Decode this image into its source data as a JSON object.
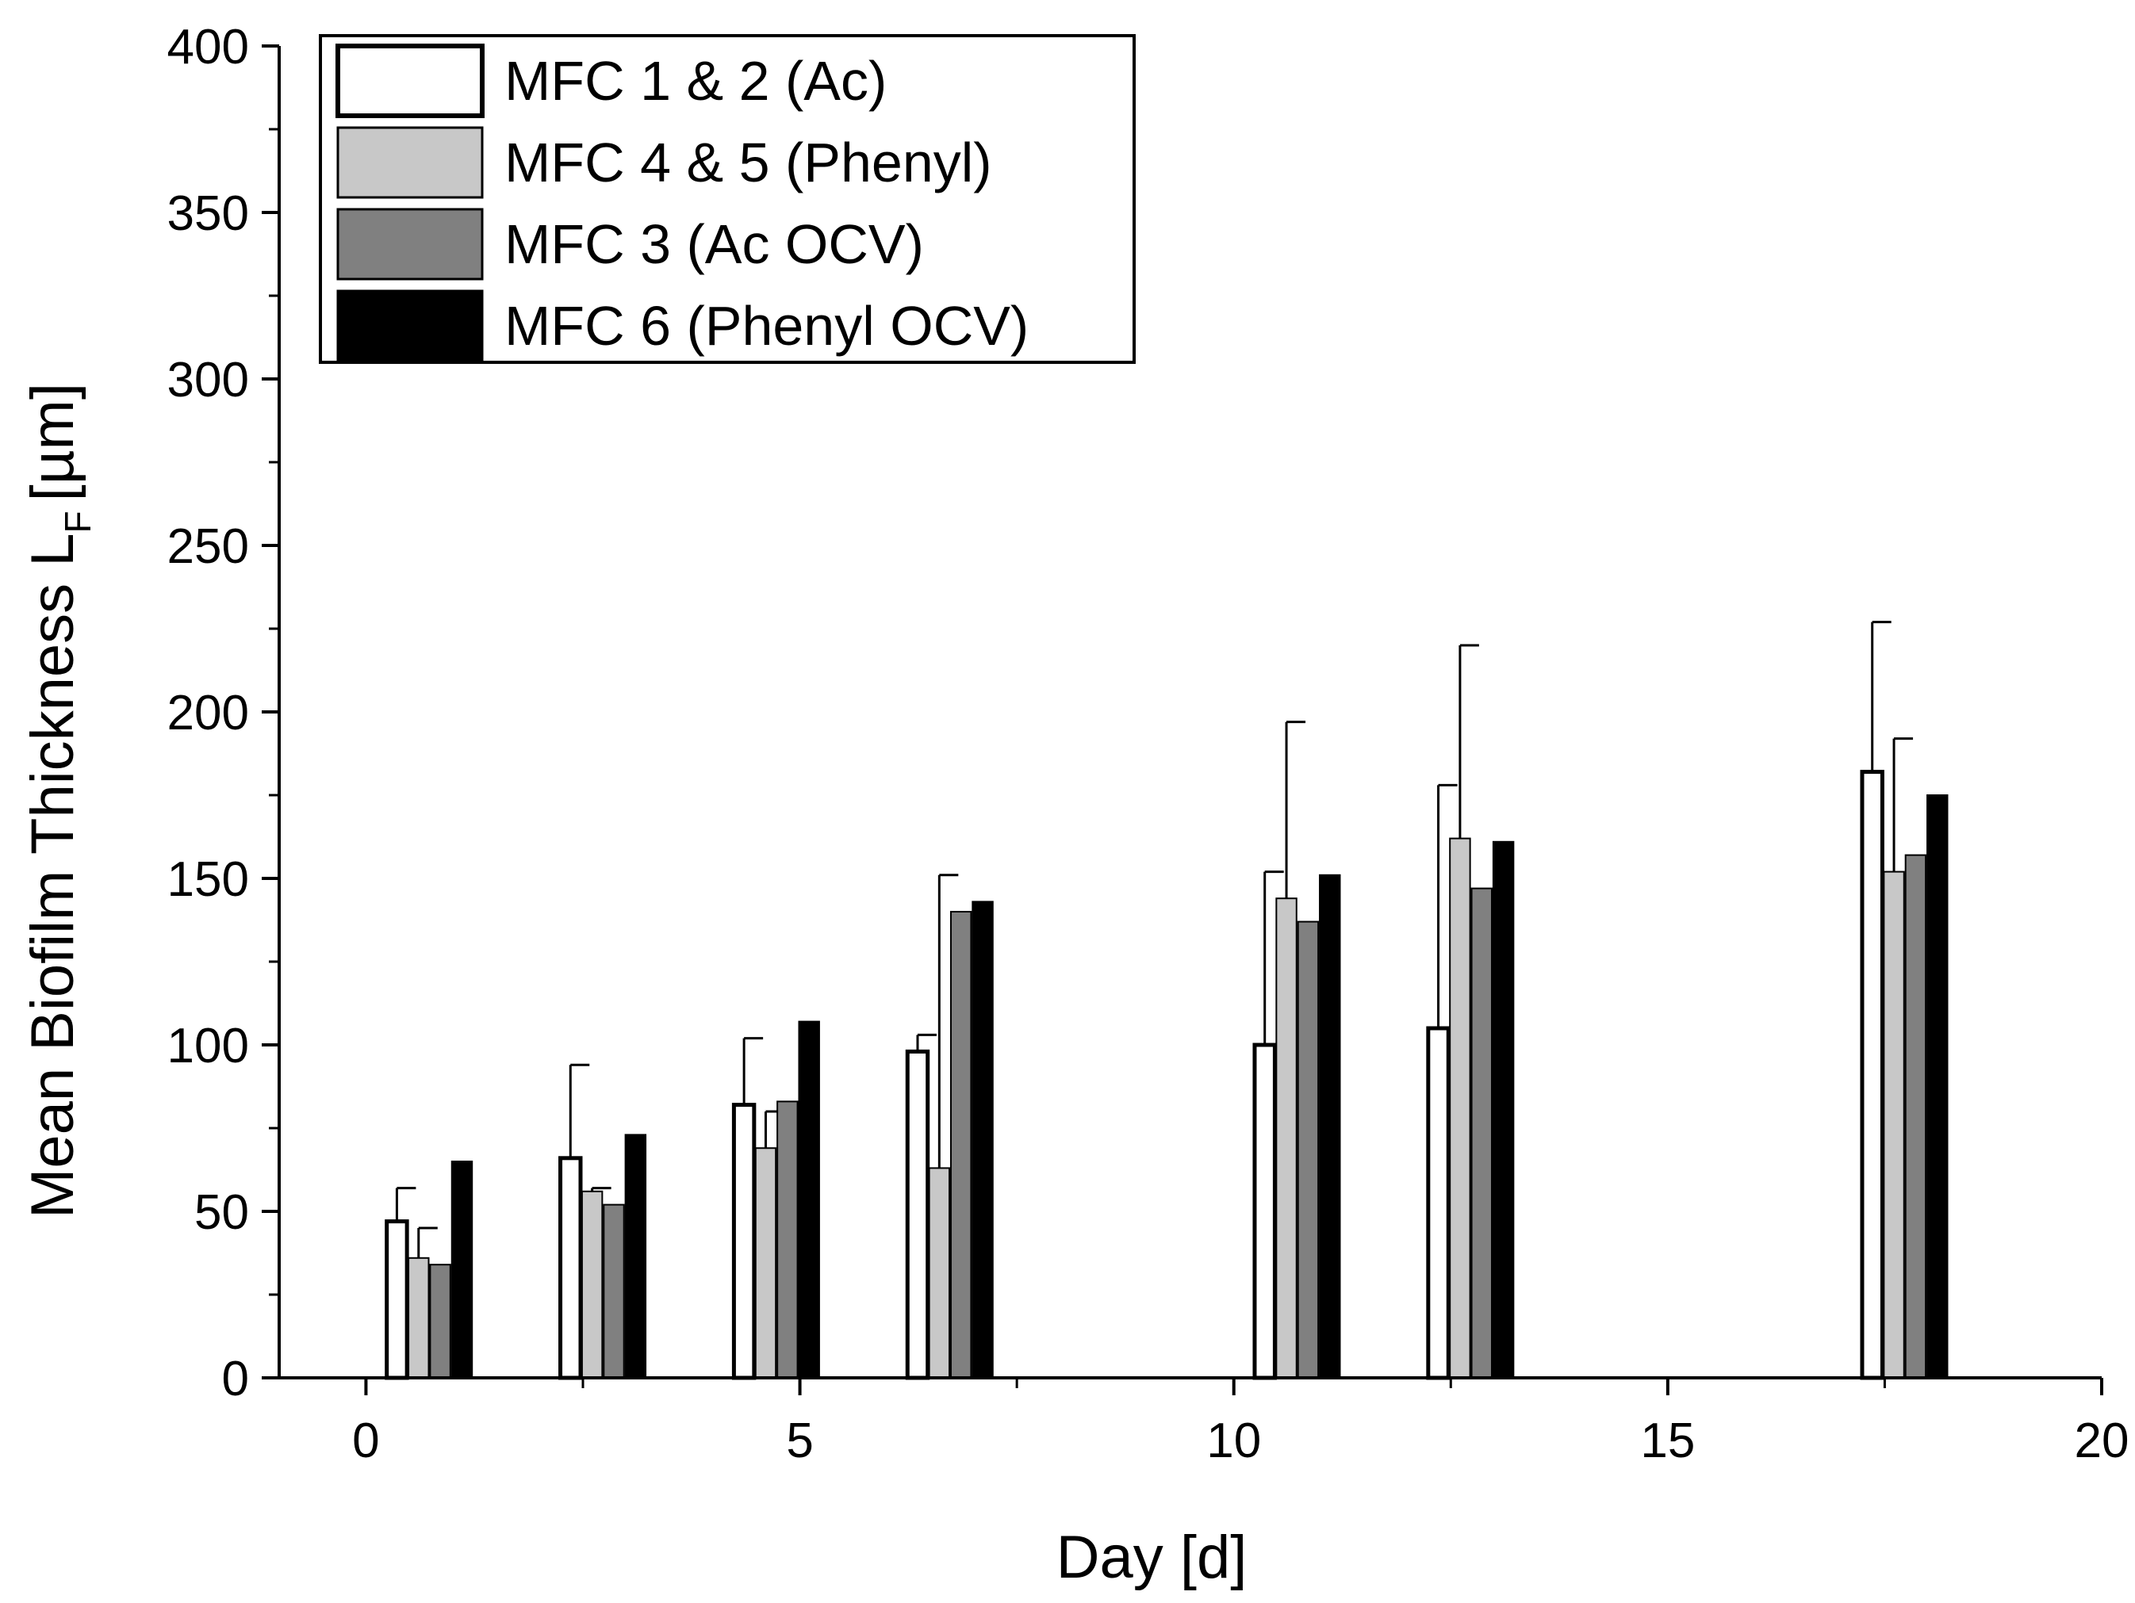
{
  "chart_data": {
    "type": "bar",
    "xlabel": "Day [d]",
    "ylabel": "Mean Biofilm Thickness L",
    "ylabel_subscript": "F",
    "ylabel_unit": "[µm]",
    "xlim": [
      -1,
      20
    ],
    "ylim": [
      0,
      400
    ],
    "xticks": [
      0,
      5,
      10,
      15,
      20
    ],
    "yticks": [
      0,
      50,
      100,
      150,
      200,
      250,
      300,
      350,
      400
    ],
    "x": [
      0.5,
      2.5,
      4.5,
      6.5,
      10.5,
      12.5,
      17.5
    ],
    "legend_position": "top-left",
    "grid": false,
    "series": [
      {
        "name": "MFC 1 & 2 (Ac)",
        "color": "#ffffff",
        "values": [
          47,
          66,
          82,
          98,
          100,
          105,
          182
        ],
        "error": [
          10,
          28,
          20,
          5,
          52,
          73,
          45
        ]
      },
      {
        "name": "MFC 4 & 5 (Phenyl)",
        "color": "#c8c8c8",
        "values": [
          36,
          56,
          69,
          63,
          144,
          162,
          152
        ],
        "error": [
          9,
          1,
          11,
          88,
          53,
          58,
          40
        ]
      },
      {
        "name": "MFC 3 (Ac OCV)",
        "color": "#808080",
        "values": [
          34,
          52,
          83,
          140,
          137,
          147,
          157
        ],
        "error": [
          0,
          0,
          0,
          0,
          0,
          0,
          0
        ]
      },
      {
        "name": "MFC 6 (Phenyl OCV)",
        "color": "#000000",
        "values": [
          65,
          73,
          107,
          143,
          151,
          161,
          175
        ],
        "error": [
          0,
          0,
          0,
          0,
          0,
          0,
          0
        ]
      }
    ]
  }
}
